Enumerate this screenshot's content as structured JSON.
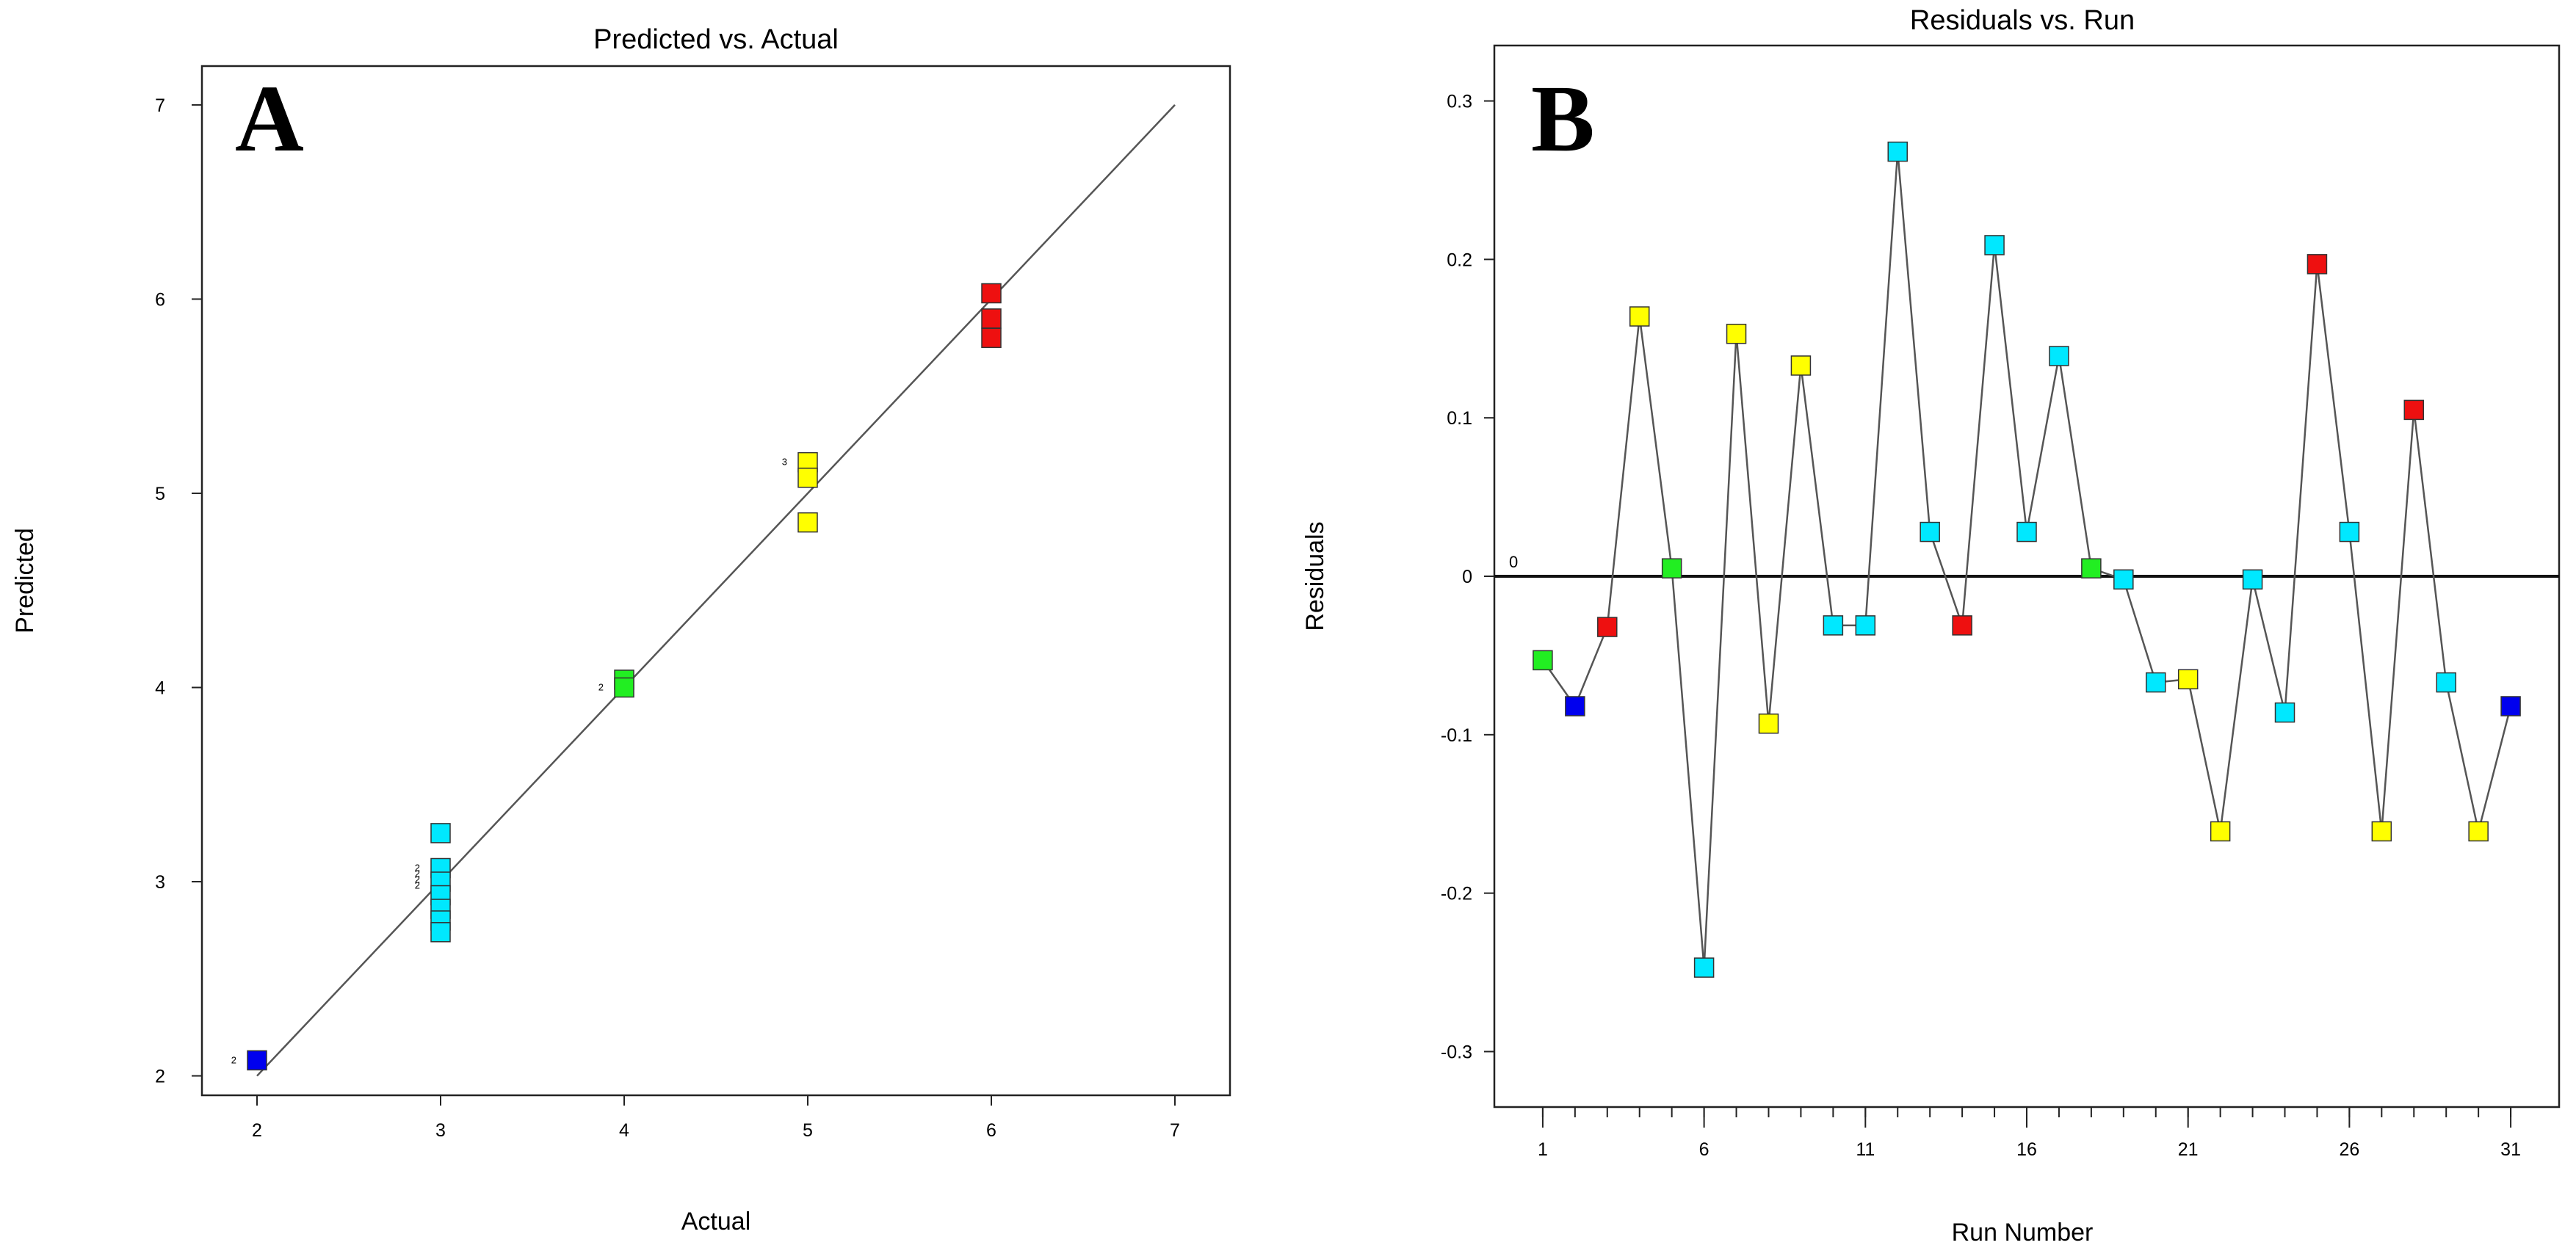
{
  "colors": {
    "blue": "#0000ee",
    "cyan": "#00e8ff",
    "green": "#22ee22",
    "yellow": "#ffff00",
    "red": "#ee1010",
    "frame": "#222222",
    "line": "#555555"
  },
  "chart_data": [
    {
      "panel_label": "A",
      "type": "scatter",
      "title": "Predicted vs. Actual",
      "xlabel": "Actual",
      "ylabel": "Predicted",
      "xlim": [
        1.7,
        7.3
      ],
      "ylim": [
        1.9,
        7.2
      ],
      "xticks": [
        2,
        3,
        4,
        5,
        6,
        7
      ],
      "yticks": [
        2,
        3,
        4,
        5,
        6,
        7
      ],
      "reference_line": {
        "x": [
          2,
          7
        ],
        "y": [
          2,
          7
        ]
      },
      "points": [
        {
          "x": 2,
          "y": 2.08,
          "color": "blue"
        },
        {
          "x": 3,
          "y": 3.25,
          "color": "cyan"
        },
        {
          "x": 3,
          "y": 3.07,
          "color": "cyan"
        },
        {
          "x": 3,
          "y": 3.0,
          "color": "cyan"
        },
        {
          "x": 3,
          "y": 2.93,
          "color": "cyan"
        },
        {
          "x": 3,
          "y": 2.86,
          "color": "cyan"
        },
        {
          "x": 3,
          "y": 2.8,
          "color": "cyan"
        },
        {
          "x": 3,
          "y": 2.74,
          "color": "cyan"
        },
        {
          "x": 4,
          "y": 4.04,
          "color": "green"
        },
        {
          "x": 4,
          "y": 4.0,
          "color": "green"
        },
        {
          "x": 5,
          "y": 5.16,
          "color": "yellow"
        },
        {
          "x": 5,
          "y": 5.08,
          "color": "yellow"
        },
        {
          "x": 5,
          "y": 4.85,
          "color": "yellow"
        },
        {
          "x": 6,
          "y": 6.03,
          "color": "red"
        },
        {
          "x": 6,
          "y": 5.9,
          "color": "red"
        },
        {
          "x": 6,
          "y": 5.8,
          "color": "red"
        }
      ],
      "annotations": [
        {
          "text": "2",
          "x": 2,
          "y": 2.08
        },
        {
          "text": "2",
          "x": 4,
          "y": 4.0
        },
        {
          "text": "3",
          "x": 5,
          "y": 5.16
        },
        {
          "text": "2",
          "x": 3,
          "y": 3.07
        },
        {
          "text": "2",
          "x": 3,
          "y": 3.04
        },
        {
          "text": "2",
          "x": 3,
          "y": 3.01
        },
        {
          "text": "2",
          "x": 3,
          "y": 2.98
        }
      ]
    },
    {
      "panel_label": "B",
      "type": "line",
      "title": "Residuals vs. Run",
      "xlabel": "Run Number",
      "ylabel": "Residuals",
      "xlim": [
        -0.5,
        32.5
      ],
      "ylim": [
        -0.335,
        0.335
      ],
      "xticks": [
        1,
        6,
        11,
        16,
        21,
        26,
        31
      ],
      "yticks": [
        -0.3,
        -0.2,
        -0.1,
        0,
        0.1,
        0.2,
        0.3
      ],
      "ytick_labels": [
        "-0.3",
        "-0.2",
        "-0.1",
        "0",
        "0.1",
        "0.2",
        "0.3"
      ],
      "zero_label": "0",
      "x": [
        1,
        2,
        3,
        4,
        5,
        6,
        7,
        8,
        9,
        10,
        11,
        12,
        13,
        14,
        15,
        16,
        17,
        18,
        19,
        20,
        21,
        22,
        23,
        24,
        25,
        26,
        27,
        28,
        29,
        30,
        31
      ],
      "residuals": [
        -0.053,
        -0.082,
        -0.032,
        0.164,
        0.005,
        -0.247,
        0.153,
        -0.093,
        0.133,
        -0.031,
        -0.031,
        0.268,
        0.028,
        -0.031,
        0.209,
        0.028,
        0.139,
        0.005,
        -0.002,
        -0.067,
        -0.065,
        -0.161,
        -0.002,
        -0.086,
        0.197,
        0.028,
        -0.161,
        0.105,
        -0.067,
        -0.161,
        -0.082
      ],
      "colors": [
        "green",
        "blue",
        "red",
        "yellow",
        "green",
        "cyan",
        "yellow",
        "yellow",
        "yellow",
        "cyan",
        "cyan",
        "cyan",
        "cyan",
        "red",
        "cyan",
        "cyan",
        "cyan",
        "green",
        "cyan",
        "cyan",
        "yellow",
        "yellow",
        "cyan",
        "cyan",
        "red",
        "cyan",
        "yellow",
        "red",
        "cyan",
        "yellow",
        "blue"
      ]
    }
  ]
}
